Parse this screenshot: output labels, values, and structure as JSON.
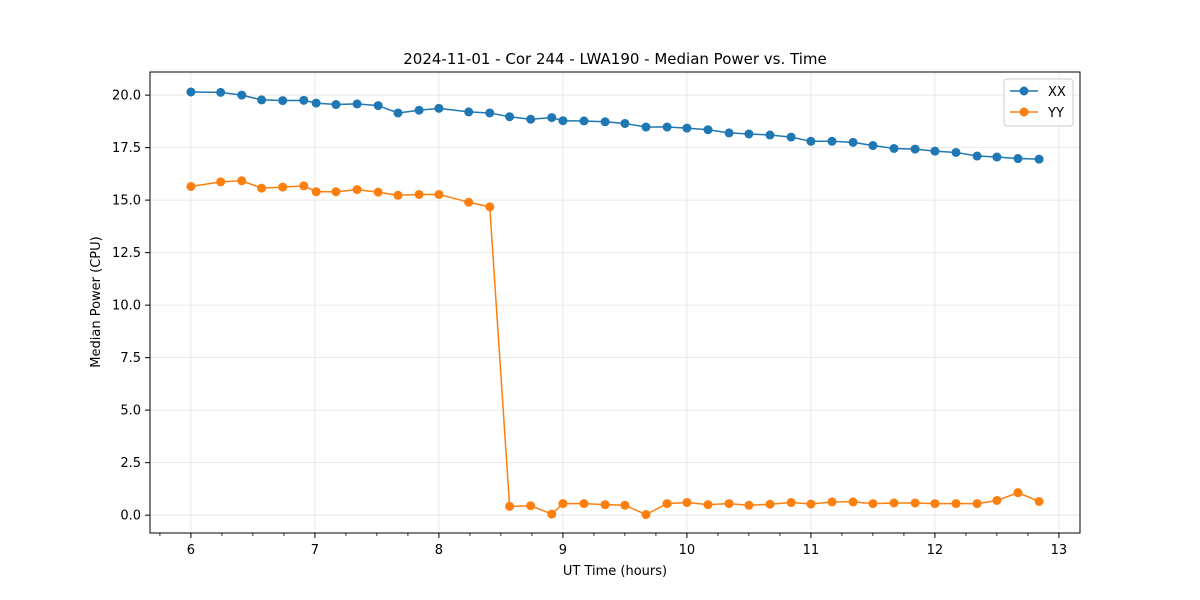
{
  "chart_data": {
    "type": "line",
    "title": "2024-11-01 - Cor 244 - LWA190 - Median Power vs. Time",
    "xlabel": "UT Time (hours)",
    "ylabel": "Median Power (CPU)",
    "xlim": [
      5.67,
      13.17
    ],
    "ylim": [
      -0.85,
      21.1
    ],
    "xticks": [
      6,
      7,
      8,
      9,
      10,
      11,
      12,
      13
    ],
    "xtick_labels": [
      "6",
      "7",
      "8",
      "9",
      "10",
      "11",
      "12",
      "13"
    ],
    "yticks": [
      0,
      2.5,
      5,
      7.5,
      10,
      12.5,
      15,
      17.5,
      20
    ],
    "ytick_labels": [
      "0.0",
      "2.5",
      "5.0",
      "7.5",
      "10.0",
      "12.5",
      "15.0",
      "17.5",
      "20.0"
    ],
    "grid": true,
    "legend_position": "top-right",
    "series": [
      {
        "name": "XX",
        "color": "#1f77b4",
        "x": [
          6.0,
          6.24,
          6.41,
          6.57,
          6.74,
          6.91,
          7.01,
          7.17,
          7.34,
          7.51,
          7.67,
          7.84,
          8.0,
          8.24,
          8.41,
          8.57,
          8.74,
          8.91,
          9.0,
          9.17,
          9.34,
          9.5,
          9.67,
          9.84,
          10.0,
          10.17,
          10.34,
          10.5,
          10.67,
          10.84,
          11.0,
          11.17,
          11.34,
          11.5,
          11.67,
          11.84,
          12.0,
          12.17,
          12.34,
          12.5,
          12.67,
          12.84
        ],
        "y": [
          20.15,
          20.13,
          20.0,
          19.77,
          19.74,
          19.75,
          19.62,
          19.55,
          19.58,
          19.5,
          19.15,
          19.28,
          19.37,
          19.2,
          19.15,
          18.97,
          18.85,
          18.93,
          18.78,
          18.77,
          18.73,
          18.65,
          18.48,
          18.48,
          18.43,
          18.35,
          18.2,
          18.15,
          18.1,
          18.0,
          17.8,
          17.8,
          17.75,
          17.6,
          17.46,
          17.43,
          17.33,
          17.27,
          17.1,
          17.05,
          16.98,
          16.95
        ]
      },
      {
        "name": "YY",
        "color": "#ff7f0e",
        "x": [
          6.0,
          6.24,
          6.41,
          6.57,
          6.74,
          6.91,
          7.01,
          7.17,
          7.34,
          7.51,
          7.67,
          7.84,
          8.0,
          8.24,
          8.41,
          8.57,
          8.74,
          8.91,
          9.0,
          9.17,
          9.34,
          9.5,
          9.67,
          9.84,
          10.0,
          10.17,
          10.34,
          10.5,
          10.67,
          10.84,
          11.0,
          11.17,
          11.34,
          11.5,
          11.67,
          11.84,
          12.0,
          12.17,
          12.34,
          12.5,
          12.67,
          12.84
        ],
        "y": [
          15.65,
          15.87,
          15.92,
          15.57,
          15.62,
          15.68,
          15.4,
          15.4,
          15.5,
          15.38,
          15.23,
          15.27,
          15.27,
          14.9,
          14.68,
          0.42,
          0.45,
          0.05,
          0.55,
          0.55,
          0.5,
          0.47,
          0.03,
          0.55,
          0.6,
          0.5,
          0.55,
          0.47,
          0.52,
          0.6,
          0.53,
          0.63,
          0.63,
          0.55,
          0.58,
          0.58,
          0.55,
          0.55,
          0.55,
          0.7,
          1.07,
          0.65
        ]
      }
    ]
  }
}
